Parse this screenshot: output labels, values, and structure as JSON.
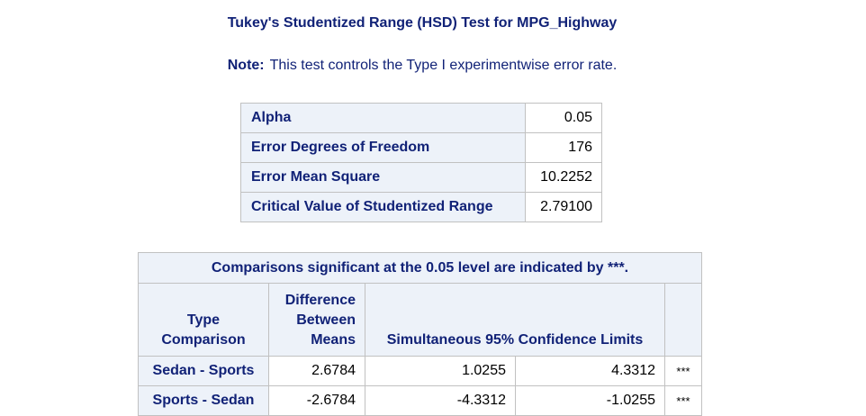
{
  "title": "Tukey's Studentized Range (HSD) Test for MPG_Highway",
  "note": {
    "label": "Note:",
    "text": "This test controls the Type I experimentwise error rate."
  },
  "parameters": [
    {
      "label": "Alpha",
      "value": "0.05"
    },
    {
      "label": "Error Degrees of Freedom",
      "value": "176"
    },
    {
      "label": "Error Mean Square",
      "value": "10.2252"
    },
    {
      "label": "Critical Value of Studentized Range",
      "value": "2.79100"
    }
  ],
  "comparisons": {
    "caption": "Comparisons significant at the 0.05 level are indicated by ***.",
    "headers": {
      "type_line1": "Type",
      "type_line2": "Comparison",
      "diff_line1": "Difference",
      "diff_line2": "Between",
      "diff_line3": "Means",
      "limits": "Simultaneous 95% Confidence Limits"
    },
    "rows": [
      {
        "comparison": "Sedan - Sports",
        "difference": "2.6784",
        "lower": "1.0255",
        "upper": "4.3312",
        "sig": "***"
      },
      {
        "comparison": "Sports - Sedan",
        "difference": "-2.6784",
        "lower": "-4.3312",
        "upper": "-1.0255",
        "sig": "***"
      }
    ]
  }
}
